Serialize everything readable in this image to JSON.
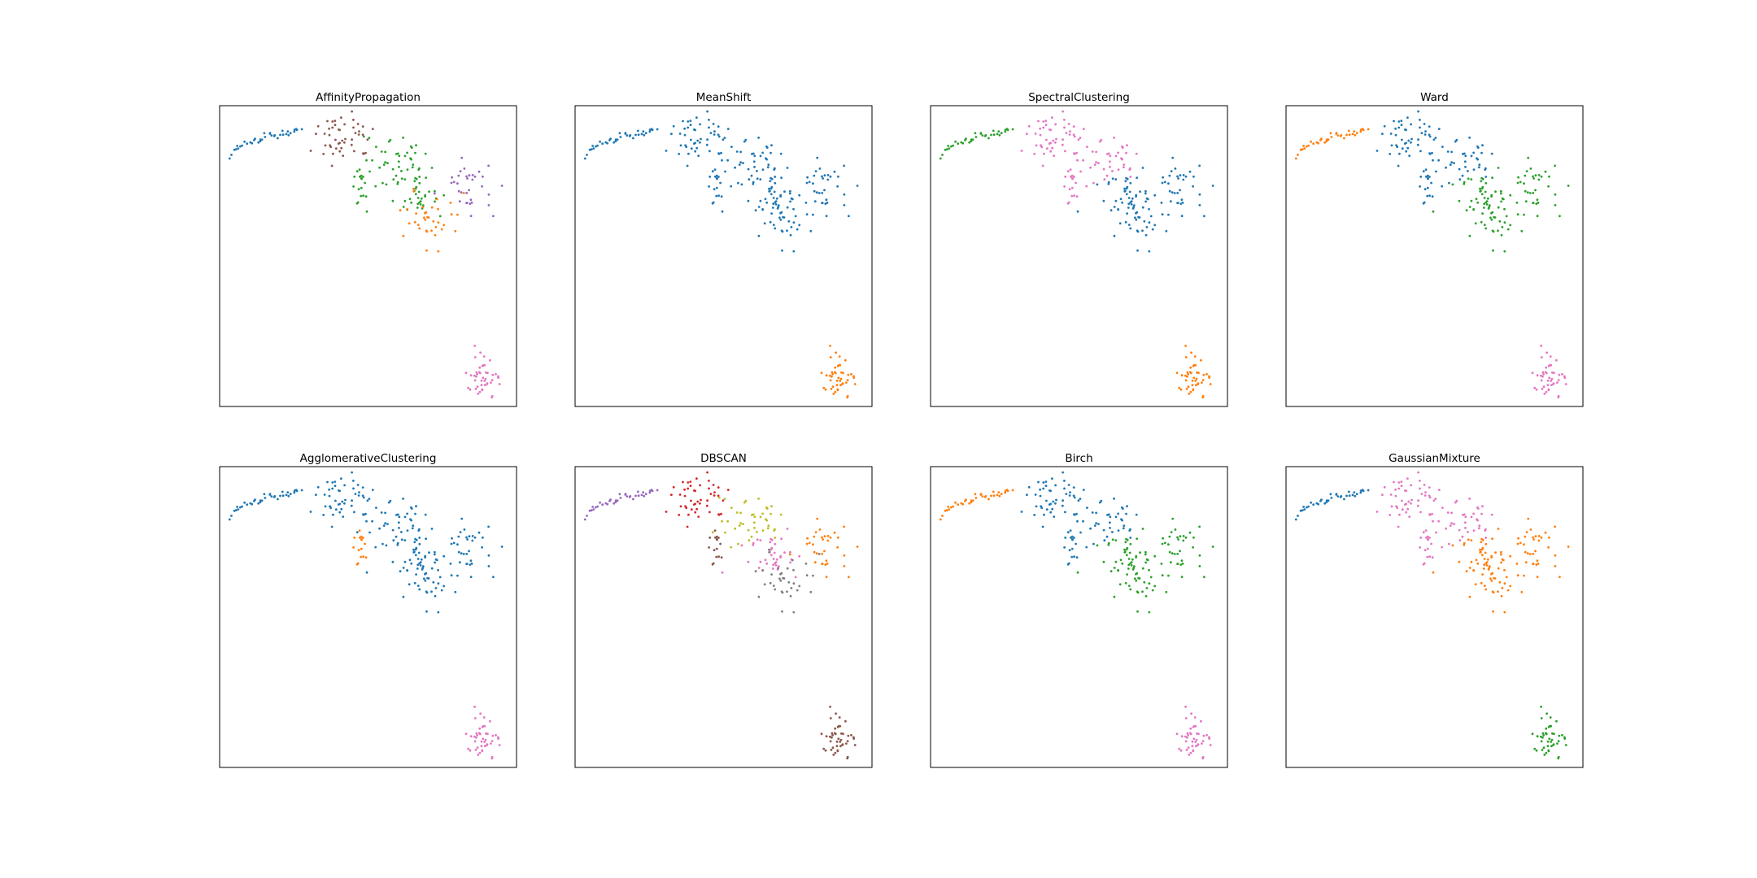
{
  "figure": {
    "background": "#ffffff",
    "palette": {
      "blue": "#1f77b4",
      "orange": "#ff7f0e",
      "green": "#2ca02c",
      "red": "#d62728",
      "purple": "#9467bd",
      "brown": "#8c564b",
      "pink": "#e377c2",
      "gray": "#7f7f7f",
      "olive": "#bcbd22",
      "black": "#000000"
    }
  },
  "chart_data": [
    {
      "type": "scatter",
      "title": "AffinityPropagation",
      "xlabel": "",
      "ylabel": "",
      "grid": false,
      "ticks": false,
      "assignment": {
        "tail": "blue",
        "A": "brown",
        "B": "green",
        "C": "green",
        "D": "green",
        "E": "orange",
        "F": "purple",
        "G": "pink"
      }
    },
    {
      "type": "scatter",
      "title": "MeanShift",
      "xlabel": "",
      "ylabel": "",
      "grid": false,
      "ticks": false,
      "assignment": {
        "tail": "blue",
        "A": "blue",
        "B": "blue",
        "C": "blue",
        "D": "blue",
        "E": "blue",
        "F": "blue",
        "G": "orange"
      }
    },
    {
      "type": "scatter",
      "title": "SpectralClustering",
      "xlabel": "",
      "ylabel": "",
      "grid": false,
      "ticks": false,
      "assignment": {
        "tail": "green",
        "A": "pink",
        "B": "pink",
        "C": "pink",
        "D": "blue",
        "E": "blue",
        "F": "blue",
        "G": "orange"
      }
    },
    {
      "type": "scatter",
      "title": "Ward",
      "xlabel": "",
      "ylabel": "",
      "grid": false,
      "ticks": false,
      "assignment": {
        "tail": "orange",
        "A": "blue",
        "B": "blue",
        "C": "blue",
        "D": "green",
        "E": "green",
        "F": "green",
        "G": "pink"
      }
    },
    {
      "type": "scatter",
      "title": "AgglomerativeClustering",
      "xlabel": "",
      "ylabel": "",
      "grid": false,
      "ticks": false,
      "assignment": {
        "tail": "blue",
        "A": "blue",
        "B": "blue",
        "C": "orange",
        "D": "blue",
        "E": "blue",
        "F": "blue",
        "G": "pink"
      }
    },
    {
      "type": "scatter",
      "title": "DBSCAN",
      "xlabel": "",
      "ylabel": "",
      "grid": false,
      "ticks": false,
      "assignment": {
        "tail": "purple",
        "A": "red",
        "B": "olive",
        "C": "brown",
        "D": "pink",
        "E": "gray",
        "F": "orange",
        "G": "brown"
      }
    },
    {
      "type": "scatter",
      "title": "Birch",
      "xlabel": "",
      "ylabel": "",
      "grid": false,
      "ticks": false,
      "assignment": {
        "tail": "orange",
        "A": "blue",
        "B": "blue",
        "C": "blue",
        "D": "green",
        "E": "green",
        "F": "green",
        "G": "pink"
      }
    },
    {
      "type": "scatter",
      "title": "GaussianMixture",
      "xlabel": "",
      "ylabel": "",
      "grid": false,
      "ticks": false,
      "assignment": {
        "tail": "blue",
        "A": "pink",
        "B": "pink",
        "C": "pink",
        "D": "orange",
        "E": "orange",
        "F": "orange",
        "G": "green"
      }
    }
  ]
}
